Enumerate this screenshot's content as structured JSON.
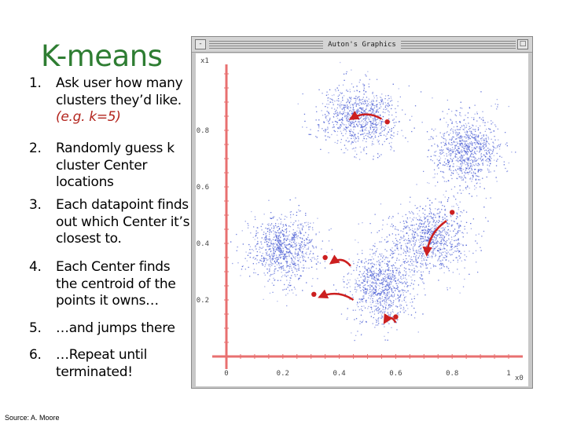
{
  "slide": {
    "title": "K-means",
    "source": "Source: A. Moore",
    "steps": [
      {
        "num": "1.",
        "lines": [
          "Ask user how many",
          "clusters they’d like."
        ],
        "hint": "(e.g. k=5)"
      },
      {
        "num": "2.",
        "lines": [
          "Randomly guess k",
          "cluster Center",
          "locations"
        ]
      },
      {
        "num": "3.",
        "lines": [
          "Each datapoint finds",
          "out which Center it’s",
          "closest to."
        ]
      },
      {
        "num": "4.",
        "lines": [
          "Each Center finds",
          "the centroid of the",
          "points it owns…"
        ]
      },
      {
        "num": "5.",
        "lines": [
          "…and jumps there"
        ]
      },
      {
        "num": "6.",
        "lines": [
          "…Repeat until",
          "terminated!"
        ]
      }
    ]
  },
  "window": {
    "title": "Auton's Graphics",
    "buttons": {
      "minimize": "-",
      "maximize": "□"
    }
  },
  "plot": {
    "y_axis_name": "x1",
    "x_axis_name": "x0",
    "x_ticks": [
      "0",
      "0.2",
      "0.4",
      "0.6",
      "0.8",
      "1"
    ],
    "y_ticks": [
      "0.2",
      "0.4",
      "0.6",
      "0.8"
    ]
  },
  "chart_data": {
    "type": "scatter",
    "title": "",
    "xlabel": "x0",
    "ylabel": "x1",
    "xlim": [
      0,
      1
    ],
    "ylim": [
      0,
      1
    ],
    "grid": false,
    "point_color": "#3a4fd0",
    "center_color": "#cc1f1f",
    "axis_color": "#e87070",
    "clusters": [
      {
        "cx": 0.47,
        "cy": 0.85,
        "sx": 0.07,
        "sy": 0.055,
        "n": 900
      },
      {
        "cx": 0.85,
        "cy": 0.73,
        "sx": 0.06,
        "sy": 0.065,
        "n": 900
      },
      {
        "cx": 0.2,
        "cy": 0.38,
        "sx": 0.058,
        "sy": 0.058,
        "n": 900
      },
      {
        "cx": 0.55,
        "cy": 0.25,
        "sx": 0.055,
        "sy": 0.065,
        "n": 900
      },
      {
        "cx": 0.72,
        "cy": 0.42,
        "sx": 0.07,
        "sy": 0.06,
        "n": 900
      }
    ],
    "centers": [
      {
        "x": 0.57,
        "y": 0.83
      },
      {
        "x": 0.8,
        "y": 0.51
      },
      {
        "x": 0.35,
        "y": 0.35
      },
      {
        "x": 0.31,
        "y": 0.22
      },
      {
        "x": 0.6,
        "y": 0.14
      }
    ],
    "moves": [
      {
        "from": [
          0.55,
          0.84
        ],
        "to": [
          0.44,
          0.84
        ]
      },
      {
        "from": [
          0.78,
          0.48
        ],
        "to": [
          0.71,
          0.36
        ]
      },
      {
        "from": [
          0.44,
          0.32
        ],
        "to": [
          0.37,
          0.33
        ]
      },
      {
        "from": [
          0.45,
          0.2
        ],
        "to": [
          0.33,
          0.21
        ]
      },
      {
        "from": [
          0.6,
          0.12
        ],
        "to": [
          0.56,
          0.12
        ]
      }
    ]
  }
}
